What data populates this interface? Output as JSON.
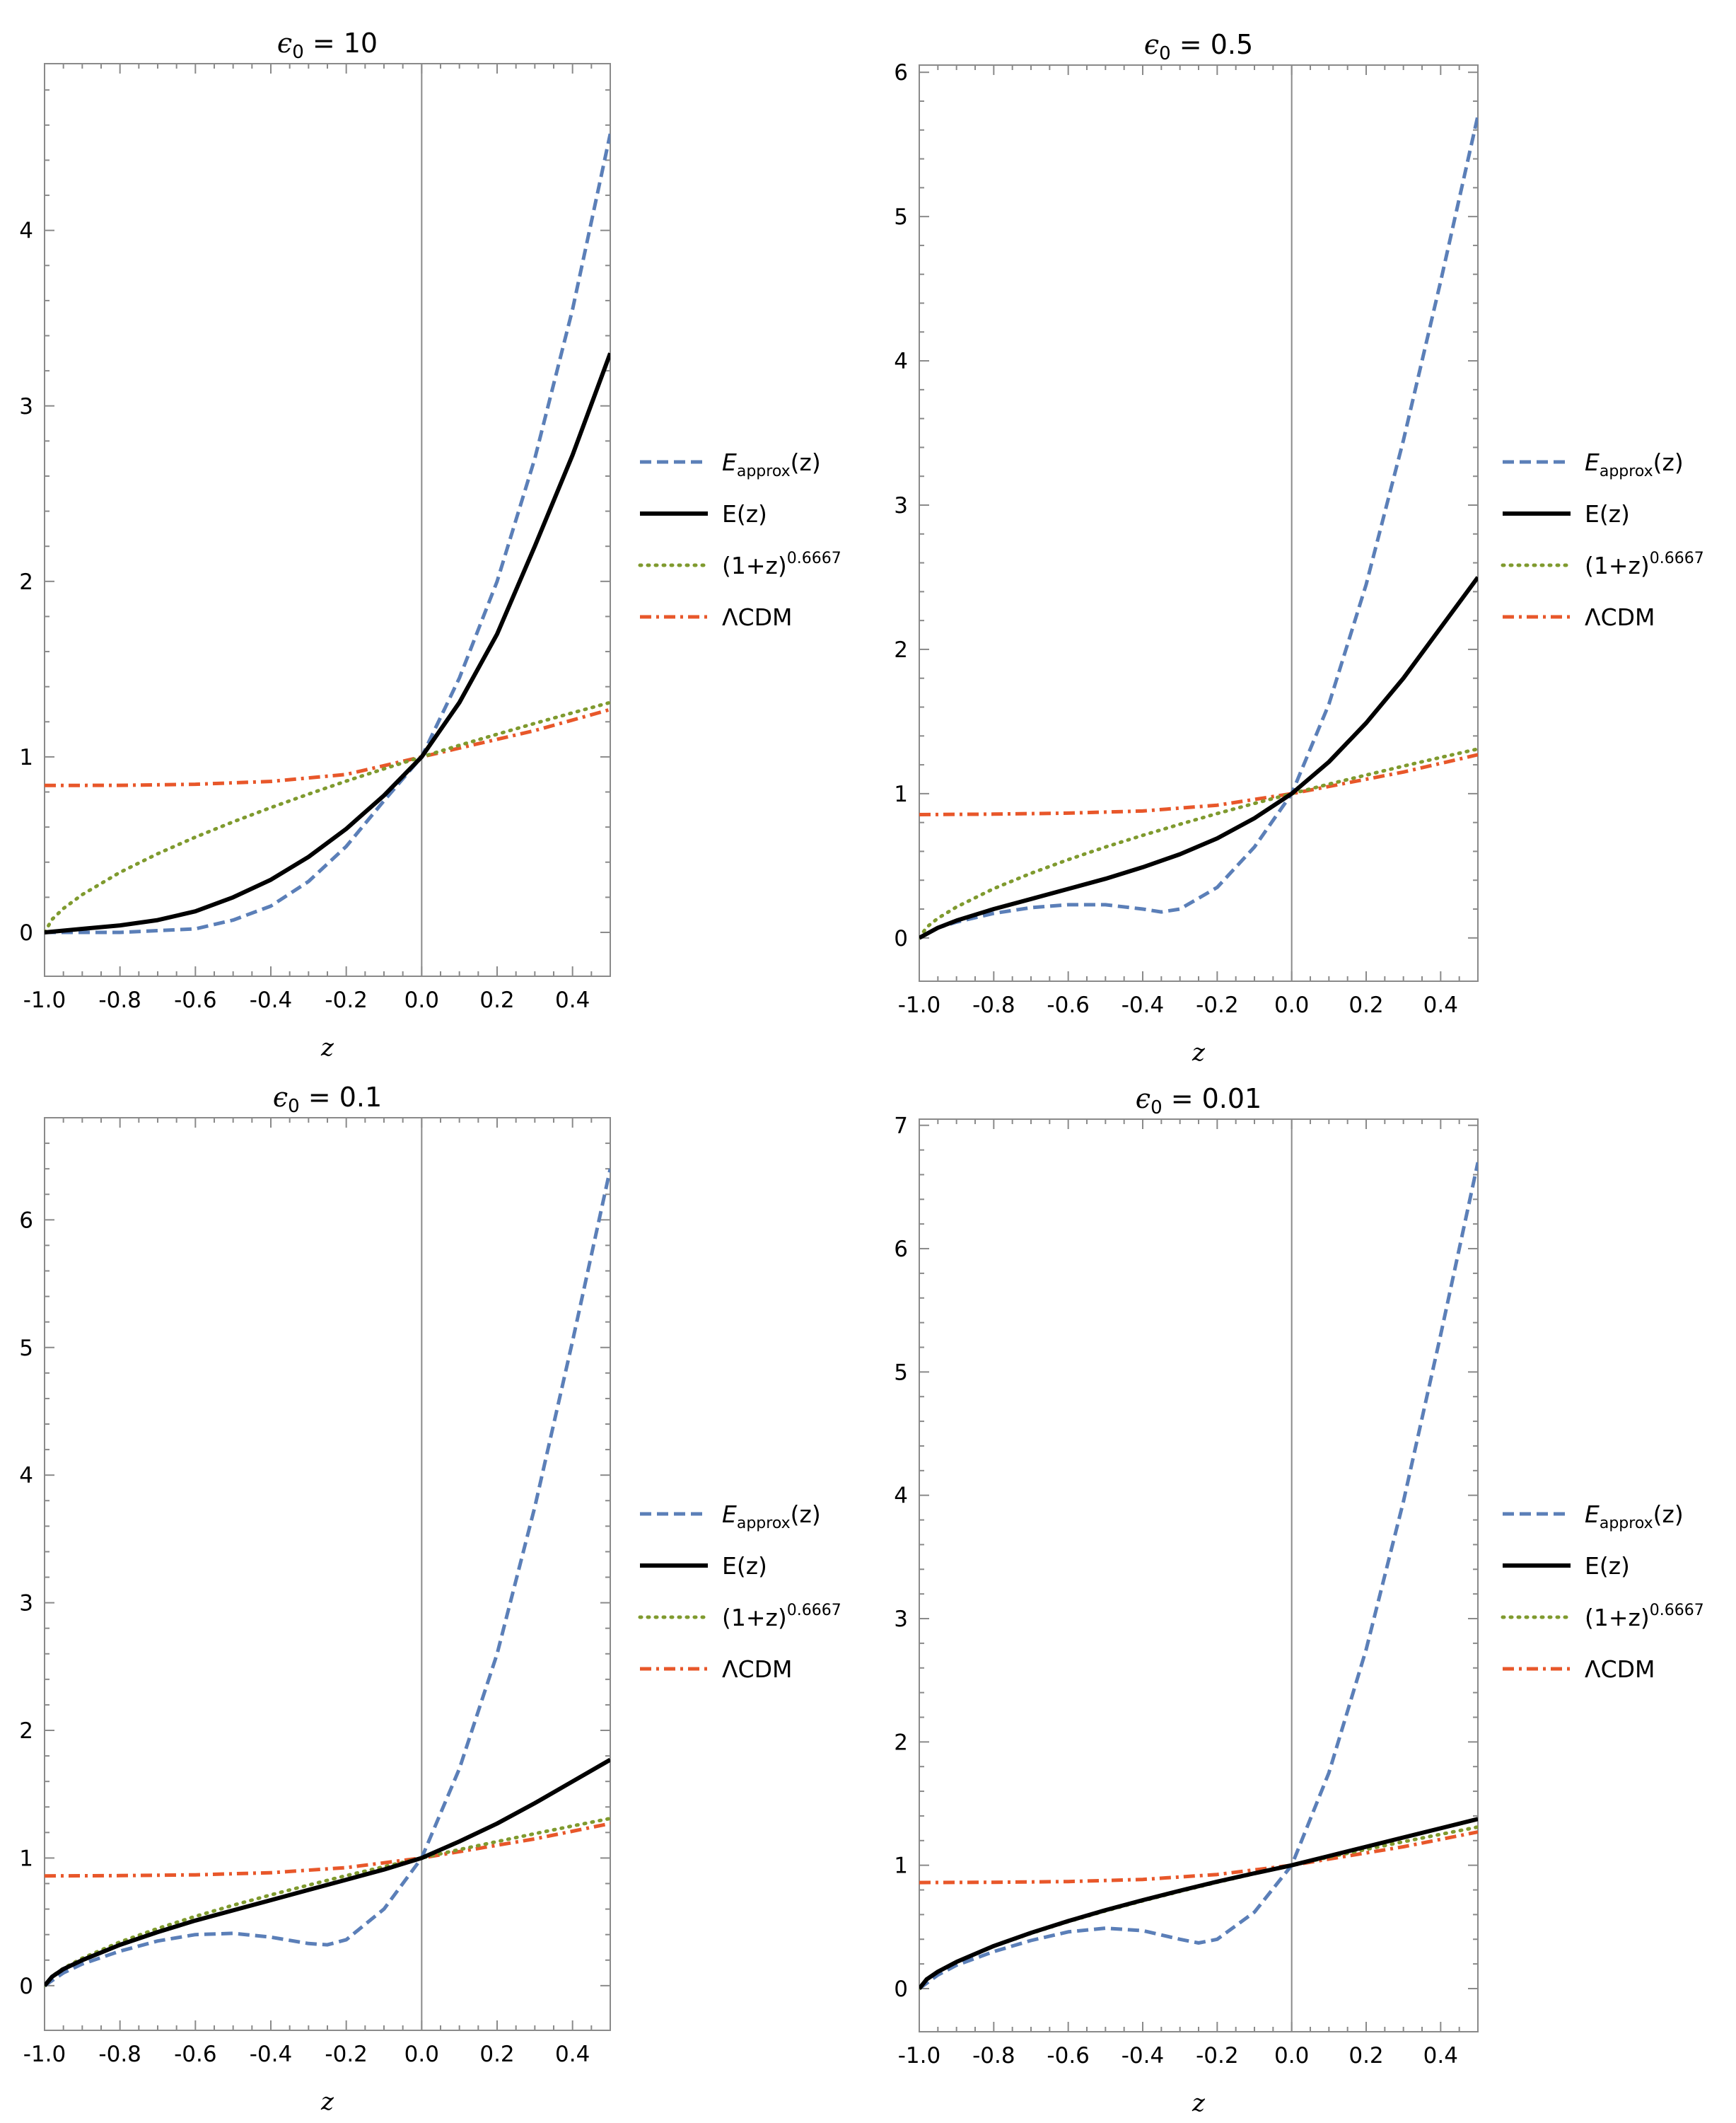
{
  "chart_data": [
    {
      "type": "line",
      "title": {
        "symbol": "ϵ",
        "subscript": "0",
        "text": " = 10"
      },
      "xlabel": "z",
      "xlim": [
        -1.0,
        0.5
      ],
      "ylim": [
        -0.25,
        4.95
      ],
      "xticks": [
        -1.0,
        -0.8,
        -0.6,
        -0.4,
        -0.2,
        0.0,
        0.2,
        0.4
      ],
      "xtick_labels": [
        "-1.0",
        "-0.8",
        "-0.6",
        "-0.4",
        "-0.2",
        "0.0",
        "0.2",
        "0.4"
      ],
      "yticks": [
        0,
        1,
        2,
        3,
        4
      ],
      "ytick_labels": [
        "0",
        "1",
        "2",
        "3",
        "4"
      ],
      "legend": {
        "placement": "right"
      },
      "series": [
        {
          "name": "E_approx(z)",
          "x": [
            -1.0,
            -0.8,
            -0.6,
            -0.5,
            -0.4,
            -0.3,
            -0.2,
            -0.1,
            0.0,
            0.1,
            0.2,
            0.3,
            0.4,
            0.5
          ],
          "y": [
            0.0,
            0.0,
            0.02,
            0.07,
            0.15,
            0.29,
            0.49,
            0.75,
            1.0,
            1.45,
            2.0,
            2.7,
            3.55,
            4.55
          ]
        },
        {
          "name": "E(z)",
          "x": [
            -1.0,
            -0.9,
            -0.8,
            -0.7,
            -0.6,
            -0.5,
            -0.4,
            -0.3,
            -0.2,
            -0.1,
            0.0,
            0.1,
            0.2,
            0.3,
            0.4,
            0.5
          ],
          "y": [
            0.0,
            0.02,
            0.04,
            0.07,
            0.12,
            0.2,
            0.3,
            0.43,
            0.59,
            0.78,
            1.0,
            1.31,
            1.7,
            2.2,
            2.72,
            3.3
          ]
        },
        {
          "name": "(1+z)^0.6667",
          "x": [
            -1.0,
            -0.98,
            -0.95,
            -0.9,
            -0.8,
            -0.7,
            -0.6,
            -0.5,
            -0.4,
            -0.3,
            -0.2,
            -0.1,
            0.0,
            0.1,
            0.2,
            0.3,
            0.4,
            0.5
          ],
          "y": [
            0.0,
            0.074,
            0.136,
            0.215,
            0.342,
            0.448,
            0.543,
            0.63,
            0.711,
            0.788,
            0.862,
            0.932,
            1.0,
            1.066,
            1.129,
            1.191,
            1.251,
            1.31
          ]
        },
        {
          "name": "ΛCDM",
          "x": [
            -1.0,
            -0.8,
            -0.6,
            -0.4,
            -0.2,
            0.0,
            0.1,
            0.2,
            0.3,
            0.4,
            0.5
          ],
          "y": [
            0.837,
            0.838,
            0.844,
            0.86,
            0.9,
            1.0,
            1.05,
            1.1,
            1.15,
            1.21,
            1.27
          ]
        }
      ]
    },
    {
      "type": "line",
      "title": {
        "symbol": "ϵ",
        "subscript": "0",
        "text": " = 0.5"
      },
      "xlabel": "z",
      "xlim": [
        -1.0,
        0.5
      ],
      "ylim": [
        -0.3,
        6.05
      ],
      "xticks": [
        -1.0,
        -0.8,
        -0.6,
        -0.4,
        -0.2,
        0.0,
        0.2,
        0.4
      ],
      "xtick_labels": [
        "-1.0",
        "-0.8",
        "-0.6",
        "-0.4",
        "-0.2",
        "0.0",
        "0.2",
        "0.4"
      ],
      "yticks": [
        0,
        1,
        2,
        3,
        4,
        5,
        6
      ],
      "ytick_labels": [
        "0",
        "1",
        "2",
        "3",
        "4",
        "5",
        "6"
      ],
      "legend": {
        "placement": "right"
      },
      "series": [
        {
          "name": "E_approx(z)",
          "x": [
            -1.0,
            -0.95,
            -0.9,
            -0.8,
            -0.7,
            -0.6,
            -0.5,
            -0.4,
            -0.35,
            -0.3,
            -0.2,
            -0.1,
            0.0,
            0.1,
            0.2,
            0.3,
            0.4,
            0.5
          ],
          "y": [
            0.0,
            0.07,
            0.11,
            0.17,
            0.21,
            0.23,
            0.23,
            0.2,
            0.18,
            0.2,
            0.35,
            0.63,
            1.0,
            1.62,
            2.45,
            3.45,
            4.55,
            5.7
          ]
        },
        {
          "name": "E(z)",
          "x": [
            -1.0,
            -0.95,
            -0.9,
            -0.8,
            -0.7,
            -0.6,
            -0.5,
            -0.4,
            -0.3,
            -0.2,
            -0.1,
            0.0,
            0.1,
            0.2,
            0.3,
            0.4,
            0.5
          ],
          "y": [
            0.0,
            0.07,
            0.12,
            0.2,
            0.27,
            0.34,
            0.41,
            0.49,
            0.58,
            0.69,
            0.83,
            1.0,
            1.22,
            1.49,
            1.8,
            2.15,
            2.5
          ]
        },
        {
          "name": "(1+z)^0.6667",
          "x": [
            -1.0,
            -0.98,
            -0.95,
            -0.9,
            -0.8,
            -0.7,
            -0.6,
            -0.5,
            -0.4,
            -0.3,
            -0.2,
            -0.1,
            0.0,
            0.1,
            0.2,
            0.3,
            0.4,
            0.5
          ],
          "y": [
            0.0,
            0.074,
            0.136,
            0.215,
            0.342,
            0.448,
            0.543,
            0.63,
            0.711,
            0.788,
            0.862,
            0.932,
            1.0,
            1.066,
            1.129,
            1.191,
            1.251,
            1.31
          ]
        },
        {
          "name": "ΛCDM",
          "x": [
            -1.0,
            -0.8,
            -0.6,
            -0.4,
            -0.2,
            0.0,
            0.1,
            0.2,
            0.3,
            0.4,
            0.5
          ],
          "y": [
            0.855,
            0.858,
            0.865,
            0.88,
            0.92,
            1.0,
            1.05,
            1.1,
            1.15,
            1.21,
            1.27
          ]
        }
      ]
    },
    {
      "type": "line",
      "title": {
        "symbol": "ϵ",
        "subscript": "0",
        "text": " = 0.1"
      },
      "xlabel": "z",
      "xlim": [
        -1.0,
        0.5
      ],
      "ylim": [
        -0.35,
        6.8
      ],
      "xticks": [
        -1.0,
        -0.8,
        -0.6,
        -0.4,
        -0.2,
        0.0,
        0.2,
        0.4
      ],
      "xtick_labels": [
        "-1.0",
        "-0.8",
        "-0.6",
        "-0.4",
        "-0.2",
        "0.0",
        "0.2",
        "0.4"
      ],
      "yticks": [
        0,
        1,
        2,
        3,
        4,
        5,
        6
      ],
      "ytick_labels": [
        "0",
        "1",
        "2",
        "3",
        "4",
        "5",
        "6"
      ],
      "legend": {
        "placement": "right"
      },
      "series": [
        {
          "name": "E_approx(z)",
          "x": [
            -1.0,
            -0.95,
            -0.9,
            -0.8,
            -0.7,
            -0.6,
            -0.5,
            -0.4,
            -0.3,
            -0.25,
            -0.2,
            -0.1,
            0.0,
            0.1,
            0.2,
            0.3,
            0.4,
            0.5
          ],
          "y": [
            0.0,
            0.1,
            0.17,
            0.27,
            0.35,
            0.4,
            0.41,
            0.38,
            0.33,
            0.32,
            0.36,
            0.6,
            1.0,
            1.7,
            2.6,
            3.75,
            5.05,
            6.4
          ]
        },
        {
          "name": "E(z)",
          "x": [
            -1.0,
            -0.98,
            -0.95,
            -0.9,
            -0.8,
            -0.7,
            -0.6,
            -0.5,
            -0.4,
            -0.3,
            -0.2,
            -0.1,
            0.0,
            0.1,
            0.2,
            0.3,
            0.4,
            0.5
          ],
          "y": [
            0.0,
            0.07,
            0.13,
            0.2,
            0.32,
            0.42,
            0.51,
            0.59,
            0.67,
            0.75,
            0.83,
            0.91,
            1.0,
            1.13,
            1.27,
            1.43,
            1.6,
            1.77
          ]
        },
        {
          "name": "(1+z)^0.6667",
          "x": [
            -1.0,
            -0.98,
            -0.95,
            -0.9,
            -0.8,
            -0.7,
            -0.6,
            -0.5,
            -0.4,
            -0.3,
            -0.2,
            -0.1,
            0.0,
            0.1,
            0.2,
            0.3,
            0.4,
            0.5
          ],
          "y": [
            0.0,
            0.074,
            0.136,
            0.215,
            0.342,
            0.448,
            0.543,
            0.63,
            0.711,
            0.788,
            0.862,
            0.932,
            1.0,
            1.066,
            1.129,
            1.191,
            1.251,
            1.31
          ]
        },
        {
          "name": "ΛCDM",
          "x": [
            -1.0,
            -0.8,
            -0.6,
            -0.4,
            -0.2,
            0.0,
            0.1,
            0.2,
            0.3,
            0.4,
            0.5
          ],
          "y": [
            0.86,
            0.862,
            0.868,
            0.885,
            0.925,
            1.0,
            1.05,
            1.1,
            1.15,
            1.21,
            1.27
          ]
        }
      ]
    },
    {
      "type": "line",
      "title": {
        "symbol": "ϵ",
        "subscript": "0",
        "text": " = 0.01"
      },
      "xlabel": "z",
      "xlim": [
        -1.0,
        0.5
      ],
      "ylim": [
        -0.35,
        7.05
      ],
      "xticks": [
        -1.0,
        -0.8,
        -0.6,
        -0.4,
        -0.2,
        0.0,
        0.2,
        0.4
      ],
      "xtick_labels": [
        "-1.0",
        "-0.8",
        "-0.6",
        "-0.4",
        "-0.2",
        "0.0",
        "0.2",
        "0.4"
      ],
      "yticks": [
        0,
        1,
        2,
        3,
        4,
        5,
        6,
        7
      ],
      "ytick_labels": [
        "0",
        "1",
        "2",
        "3",
        "4",
        "5",
        "6",
        "7"
      ],
      "legend": {
        "placement": "right"
      },
      "series": [
        {
          "name": "E_approx(z)",
          "x": [
            -1.0,
            -0.95,
            -0.9,
            -0.8,
            -0.7,
            -0.6,
            -0.5,
            -0.4,
            -0.3,
            -0.25,
            -0.2,
            -0.1,
            0.0,
            0.1,
            0.2,
            0.3,
            0.4,
            0.5
          ],
          "y": [
            0.0,
            0.11,
            0.19,
            0.3,
            0.39,
            0.46,
            0.49,
            0.47,
            0.4,
            0.37,
            0.4,
            0.62,
            1.0,
            1.75,
            2.75,
            3.95,
            5.3,
            6.7
          ]
        },
        {
          "name": "E(z)",
          "x": [
            -1.0,
            -0.98,
            -0.95,
            -0.9,
            -0.8,
            -0.7,
            -0.6,
            -0.5,
            -0.4,
            -0.3,
            -0.2,
            -0.1,
            0.0,
            0.1,
            0.2,
            0.3,
            0.4,
            0.5
          ],
          "y": [
            0.0,
            0.075,
            0.137,
            0.216,
            0.345,
            0.452,
            0.548,
            0.636,
            0.717,
            0.794,
            0.867,
            0.935,
            1.0,
            1.075,
            1.15,
            1.225,
            1.3,
            1.375
          ]
        },
        {
          "name": "(1+z)^0.6667",
          "x": [
            -1.0,
            -0.98,
            -0.95,
            -0.9,
            -0.8,
            -0.7,
            -0.6,
            -0.5,
            -0.4,
            -0.3,
            -0.2,
            -0.1,
            0.0,
            0.1,
            0.2,
            0.3,
            0.4,
            0.5
          ],
          "y": [
            0.0,
            0.074,
            0.136,
            0.215,
            0.342,
            0.448,
            0.543,
            0.63,
            0.711,
            0.788,
            0.862,
            0.932,
            1.0,
            1.066,
            1.129,
            1.191,
            1.251,
            1.31
          ]
        },
        {
          "name": "ΛCDM",
          "x": [
            -1.0,
            -0.8,
            -0.6,
            -0.4,
            -0.2,
            0.0,
            0.1,
            0.2,
            0.3,
            0.4,
            0.5
          ],
          "y": [
            0.86,
            0.862,
            0.868,
            0.885,
            0.925,
            1.0,
            1.05,
            1.1,
            1.15,
            1.21,
            1.27
          ]
        }
      ]
    }
  ],
  "legend_entries": [
    {
      "key": "approx",
      "main": "E",
      "sub": "approx",
      "tail": "(z)",
      "color": "#5B7FB8",
      "style": "dashed"
    },
    {
      "key": "exact",
      "main": "E(z)",
      "color": "#000000",
      "style": "solid"
    },
    {
      "key": "power",
      "main": "(1+z)",
      "sup": "0.6667",
      "color": "#7F9A2E",
      "style": "dotted"
    },
    {
      "key": "lcdm",
      "main": "ΛCDM",
      "color": "#E8572A",
      "style": "dashdot"
    }
  ]
}
